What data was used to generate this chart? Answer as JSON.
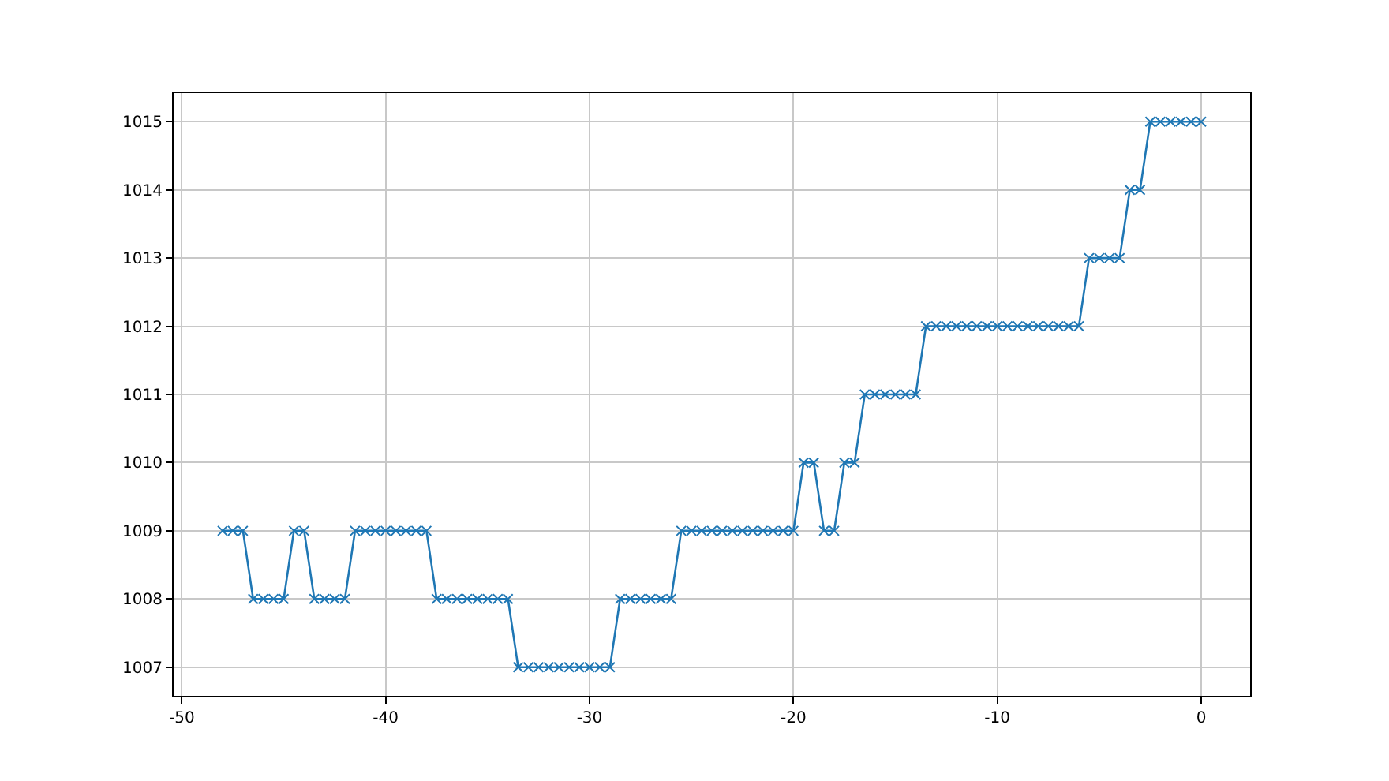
{
  "chart_data": {
    "type": "line",
    "x": [
      -48,
      -47.5,
      -47,
      -46.5,
      -46,
      -45.5,
      -45,
      -44.5,
      -44,
      -43.5,
      -43,
      -42.5,
      -42,
      -41.5,
      -41,
      -40.5,
      -40,
      -39.5,
      -39,
      -38.5,
      -38,
      -37.5,
      -37,
      -36.5,
      -36,
      -35.5,
      -35,
      -34.5,
      -34,
      -33.5,
      -33,
      -32.5,
      -32,
      -31.5,
      -31,
      -30.5,
      -30,
      -29.5,
      -29,
      -28.5,
      -28,
      -27.5,
      -27,
      -26.5,
      -26,
      -25.5,
      -25,
      -24.5,
      -24,
      -23.5,
      -23,
      -22.5,
      -22,
      -21.5,
      -21,
      -20.5,
      -20,
      -19.5,
      -19,
      -18.5,
      -18,
      -17.5,
      -17,
      -16.5,
      -16,
      -15.5,
      -15,
      -14.5,
      -14,
      -13.5,
      -13,
      -12.5,
      -12,
      -11.5,
      -11,
      -10.5,
      -10,
      -9.5,
      -9,
      -8.5,
      -8,
      -7.5,
      -7,
      -6.5,
      -6,
      -5.5,
      -5,
      -4.5,
      -4,
      -3.5,
      -3,
      -2.5,
      -2,
      -1.5,
      -1,
      -0.5,
      0
    ],
    "series": [
      {
        "color": "#1f77b4",
        "values": [
          1009,
          1009,
          1009,
          1008,
          1008,
          1008,
          1008,
          1009,
          1009,
          1008,
          1008,
          1008,
          1008,
          1009,
          1009,
          1009,
          1009,
          1009,
          1009,
          1009,
          1009,
          1008,
          1008,
          1008,
          1008,
          1008,
          1008,
          1008,
          1008,
          1007,
          1007,
          1007,
          1007,
          1007,
          1007,
          1007,
          1007,
          1007,
          1007,
          1008,
          1008,
          1008,
          1008,
          1008,
          1008,
          1009,
          1009,
          1009,
          1009,
          1009,
          1009,
          1009,
          1009,
          1009,
          1009,
          1009,
          1009,
          1010,
          1010,
          1009,
          1009,
          1010,
          1010,
          1011,
          1011,
          1011,
          1011,
          1011,
          1011,
          1012,
          1012,
          1012,
          1012,
          1012,
          1012,
          1012,
          1012,
          1012,
          1012,
          1012,
          1012,
          1012,
          1012,
          1012,
          1012,
          1013,
          1013,
          1013,
          1013,
          1014,
          1014,
          1015,
          1015,
          1015,
          1015,
          1015,
          1015
        ]
      }
    ],
    "xlim": [
      -50.4,
      2.4
    ],
    "xticks": [
      -50,
      -40,
      -30,
      -20,
      -10,
      0
    ],
    "ylim": [
      1006.58,
      1015.42
    ],
    "yticks": [
      1007,
      1008,
      1009,
      1010,
      1011,
      1012,
      1013,
      1014,
      1015
    ],
    "grid": true,
    "marker": "cross",
    "line_style": "solid"
  }
}
